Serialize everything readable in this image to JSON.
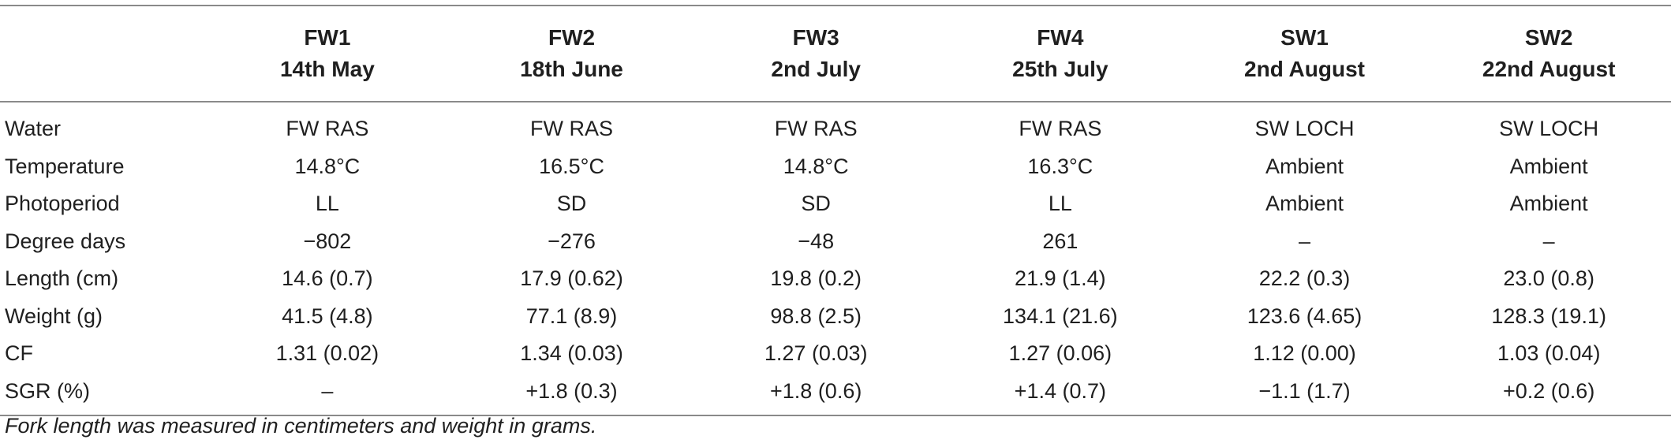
{
  "table": {
    "columns": [
      {
        "id": "FW1",
        "date": "14th May"
      },
      {
        "id": "FW2",
        "date": "18th June"
      },
      {
        "id": "FW3",
        "date": "2nd July"
      },
      {
        "id": "FW4",
        "date": "25th July"
      },
      {
        "id": "SW1",
        "date": "2nd August"
      },
      {
        "id": "SW2",
        "date": "22nd August"
      }
    ],
    "rows": [
      {
        "label": "Water",
        "values": [
          "FW RAS",
          "FW RAS",
          "FW RAS",
          "FW RAS",
          "SW LOCH",
          "SW LOCH"
        ]
      },
      {
        "label": "Temperature",
        "values": [
          "14.8°C",
          "16.5°C",
          "14.8°C",
          "16.3°C",
          "Ambient",
          "Ambient"
        ]
      },
      {
        "label": "Photoperiod",
        "values": [
          "LL",
          "SD",
          "SD",
          "LL",
          "Ambient",
          "Ambient"
        ]
      },
      {
        "label": "Degree days",
        "values": [
          "−802",
          "−276",
          "−48",
          "261",
          "–",
          "–"
        ]
      },
      {
        "label": "Length (cm)",
        "values": [
          "14.6 (0.7)",
          "17.9 (0.62)",
          "19.8 (0.2)",
          "21.9 (1.4)",
          "22.2 (0.3)",
          "23.0 (0.8)"
        ]
      },
      {
        "label": "Weight (g)",
        "values": [
          "41.5 (4.8)",
          "77.1 (8.9)",
          "98.8 (2.5)",
          "134.1 (21.6)",
          "123.6 (4.65)",
          "128.3 (19.1)"
        ]
      },
      {
        "label": "CF",
        "values": [
          "1.31 (0.02)",
          "1.34 (0.03)",
          "1.27 (0.03)",
          "1.27 (0.06)",
          "1.12 (0.00)",
          "1.03 (0.04)"
        ]
      },
      {
        "label": "SGR (%)",
        "values": [
          "–",
          "+1.8 (0.3)",
          "+1.8 (0.6)",
          "+1.4 (0.7)",
          "−1.1 (1.7)",
          "+0.2 (0.6)"
        ]
      }
    ]
  },
  "footnote": "Fork length was measured in centimeters and weight in grams."
}
